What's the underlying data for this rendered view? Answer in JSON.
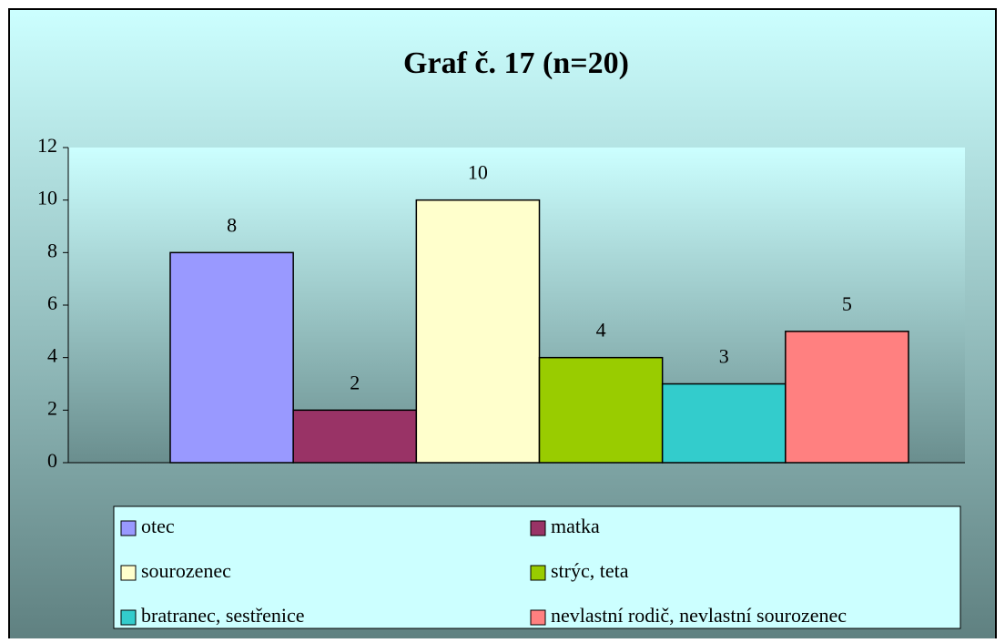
{
  "chart_data": {
    "type": "bar",
    "title": "Graf č. 17 (n=20)",
    "series": [
      {
        "name": "otec",
        "color": "#9999ff",
        "values": [
          8
        ]
      },
      {
        "name": "matka",
        "color": "#993366",
        "values": [
          2
        ]
      },
      {
        "name": "sourozenec",
        "color": "#ffffcc",
        "values": [
          10
        ]
      },
      {
        "name": "strýc, teta",
        "color": "#99cc00",
        "values": [
          4
        ]
      },
      {
        "name": "bratranec, sestřenice",
        "color": "#33cccc",
        "values": [
          3
        ]
      },
      {
        "name": "nevlastní rodič, nevlastní sourozenec",
        "color": "#ff8080",
        "values": [
          5
        ]
      }
    ],
    "ylim": [
      0,
      12
    ],
    "yticks": [
      0,
      2,
      4,
      6,
      8,
      10,
      12
    ],
    "grid": false,
    "legend": "bottom"
  }
}
